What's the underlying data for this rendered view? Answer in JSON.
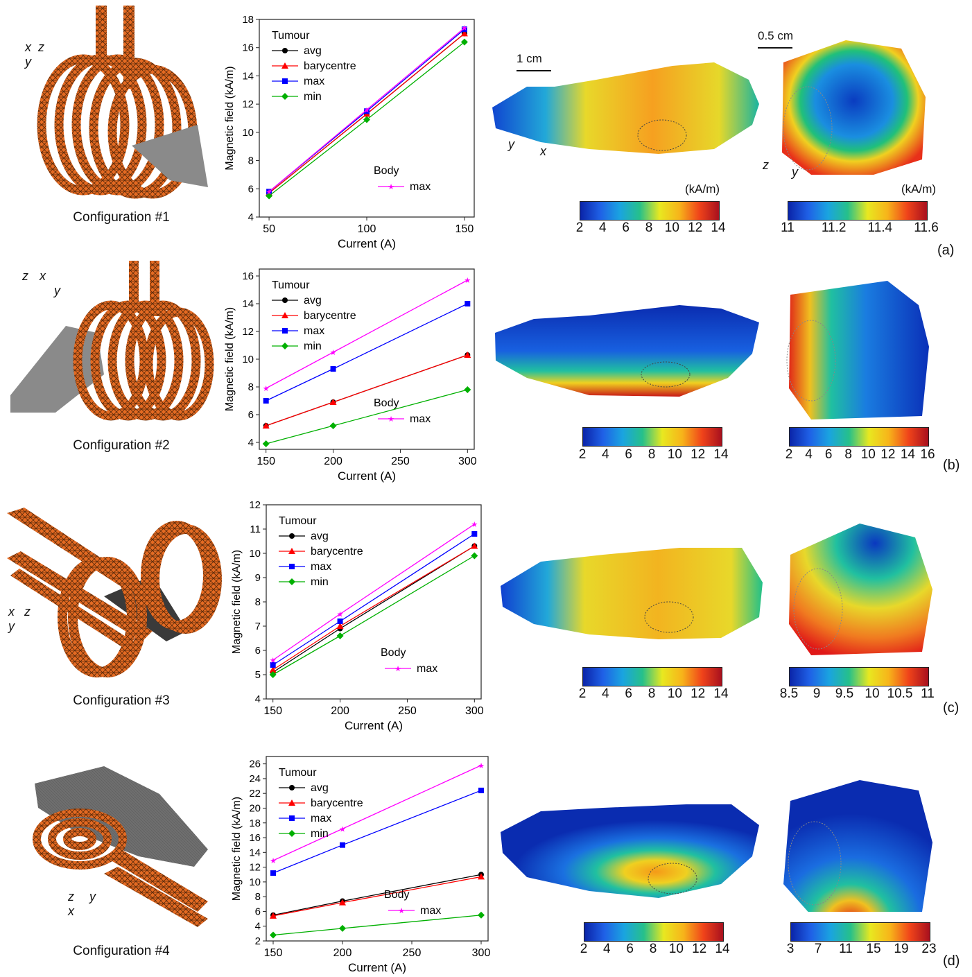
{
  "panels": [
    {
      "id": "a",
      "config_label": "Configuration #1",
      "panel_label": "(a)",
      "axes_labels": [
        "x",
        "y",
        "z"
      ],
      "map1": {
        "colorbar_ticks": [
          "2",
          "4",
          "6",
          "8",
          "10",
          "12",
          "14"
        ],
        "unit": "(kA/m)",
        "scalebar": "1 cm",
        "axes": [
          "y",
          "x"
        ]
      },
      "map2": {
        "colorbar_ticks": [
          "11",
          "11.2",
          "11.4",
          "11.6"
        ],
        "unit": "(kA/m)",
        "scalebar": "0.5 cm",
        "axes": [
          "z",
          "y"
        ]
      },
      "chart": {
        "xticks": [
          "50",
          "100",
          "150"
        ],
        "yticks": [
          "4",
          "6",
          "8",
          "10",
          "12",
          "14",
          "16",
          "18"
        ]
      }
    },
    {
      "id": "b",
      "config_label": "Configuration #2",
      "panel_label": "(b)",
      "axes_labels": [
        "z",
        "x",
        "y"
      ],
      "map1": {
        "colorbar_ticks": [
          "2",
          "4",
          "6",
          "8",
          "10",
          "12",
          "14"
        ]
      },
      "map2": {
        "colorbar_ticks": [
          "2",
          "4",
          "6",
          "8",
          "10",
          "12",
          "14",
          "16"
        ]
      },
      "chart": {
        "xticks": [
          "150",
          "200",
          "250",
          "300"
        ],
        "yticks": [
          "4",
          "6",
          "8",
          "10",
          "12",
          "14",
          "16"
        ]
      }
    },
    {
      "id": "c",
      "config_label": "Configuration #3",
      "panel_label": "(c)",
      "axes_labels": [
        "x",
        "z",
        "y"
      ],
      "map1": {
        "colorbar_ticks": [
          "2",
          "4",
          "6",
          "8",
          "10",
          "12",
          "14"
        ]
      },
      "map2": {
        "colorbar_ticks": [
          "8.5",
          "9",
          "9.5",
          "10",
          "10.5",
          "11"
        ]
      },
      "chart": {
        "xticks": [
          "150",
          "200",
          "250",
          "300"
        ],
        "yticks": [
          "4",
          "5",
          "6",
          "7",
          "8",
          "9",
          "10",
          "11",
          "12"
        ]
      }
    },
    {
      "id": "d",
      "config_label": "Configuration #4",
      "panel_label": "(d)",
      "axes_labels": [
        "z",
        "y",
        "x"
      ],
      "map1": {
        "colorbar_ticks": [
          "2",
          "4",
          "6",
          "8",
          "10",
          "12",
          "14"
        ]
      },
      "map2": {
        "colorbar_ticks": [
          "3",
          "7",
          "11",
          "15",
          "19",
          "23"
        ]
      },
      "chart": {
        "xticks": [
          "150",
          "200",
          "250",
          "300"
        ],
        "yticks": [
          "2",
          "4",
          "6",
          "8",
          "10",
          "12",
          "14",
          "16",
          "18",
          "20",
          "22",
          "24",
          "26"
        ]
      }
    }
  ],
  "legend": {
    "tumour_title": "Tumour",
    "body_title": "Body",
    "entries": [
      "avg",
      "barycentre",
      "max",
      "min"
    ],
    "body_entry": "max"
  },
  "colors": {
    "avg": "#000000",
    "barycentre": "#ff0000",
    "max": "#0000ff",
    "min": "#00b000",
    "body_max": "#ff00ff",
    "coil": "#e2621b"
  },
  "chart_data": [
    {
      "type": "line",
      "xlabel": "Current (A)",
      "ylabel": "Magnetic field (kA/m)",
      "xlim": [
        45,
        155
      ],
      "ylim": [
        4,
        18
      ],
      "x": [
        50,
        100,
        150
      ],
      "series": [
        {
          "name": "avg",
          "group": "Tumour",
          "values": [
            5.7,
            11.3,
            17.0
          ]
        },
        {
          "name": "barycentre",
          "group": "Tumour",
          "values": [
            5.7,
            11.3,
            17.0
          ]
        },
        {
          "name": "max",
          "group": "Tumour",
          "values": [
            5.8,
            11.5,
            17.3
          ]
        },
        {
          "name": "min",
          "group": "Tumour",
          "values": [
            5.5,
            10.9,
            16.4
          ]
        },
        {
          "name": "max",
          "group": "Body",
          "values": [
            5.8,
            11.6,
            17.4
          ]
        }
      ]
    },
    {
      "type": "line",
      "xlabel": "Current (A)",
      "ylabel": "Magnetic field (kA/m)",
      "xlim": [
        145,
        305
      ],
      "ylim": [
        3.5,
        16.5
      ],
      "x": [
        150,
        200,
        300
      ],
      "series": [
        {
          "name": "avg",
          "group": "Tumour",
          "values": [
            5.2,
            6.9,
            10.3
          ]
        },
        {
          "name": "barycentre",
          "group": "Tumour",
          "values": [
            5.2,
            6.9,
            10.3
          ]
        },
        {
          "name": "max",
          "group": "Tumour",
          "values": [
            7.0,
            9.3,
            14.0
          ]
        },
        {
          "name": "min",
          "group": "Tumour",
          "values": [
            3.9,
            5.2,
            7.8
          ]
        },
        {
          "name": "max",
          "group": "Body",
          "values": [
            7.9,
            10.5,
            15.7
          ]
        }
      ]
    },
    {
      "type": "line",
      "xlabel": "Current (A)",
      "ylabel": "Magnetic field (kA/m)",
      "xlim": [
        145,
        305
      ],
      "ylim": [
        4,
        12
      ],
      "x": [
        150,
        200,
        300
      ],
      "series": [
        {
          "name": "avg",
          "group": "Tumour",
          "values": [
            5.1,
            6.9,
            10.3
          ]
        },
        {
          "name": "barycentre",
          "group": "Tumour",
          "values": [
            5.2,
            7.0,
            10.3
          ]
        },
        {
          "name": "max",
          "group": "Tumour",
          "values": [
            5.4,
            7.2,
            10.8
          ]
        },
        {
          "name": "min",
          "group": "Tumour",
          "values": [
            5.0,
            6.6,
            9.9
          ]
        },
        {
          "name": "max",
          "group": "Body",
          "values": [
            5.6,
            7.5,
            11.2
          ]
        }
      ]
    },
    {
      "type": "line",
      "xlabel": "Current (A)",
      "ylabel": "Magnetic field (kA/m)",
      "xlim": [
        145,
        305
      ],
      "ylim": [
        2,
        27
      ],
      "x": [
        150,
        200,
        300
      ],
      "series": [
        {
          "name": "avg",
          "group": "Tumour",
          "values": [
            5.5,
            7.4,
            11.0
          ]
        },
        {
          "name": "barycentre",
          "group": "Tumour",
          "values": [
            5.4,
            7.2,
            10.7
          ]
        },
        {
          "name": "max",
          "group": "Tumour",
          "values": [
            11.2,
            15.0,
            22.4
          ]
        },
        {
          "name": "min",
          "group": "Tumour",
          "values": [
            2.8,
            3.7,
            5.5
          ]
        },
        {
          "name": "max",
          "group": "Body",
          "values": [
            12.9,
            17.2,
            25.8
          ]
        }
      ]
    }
  ]
}
